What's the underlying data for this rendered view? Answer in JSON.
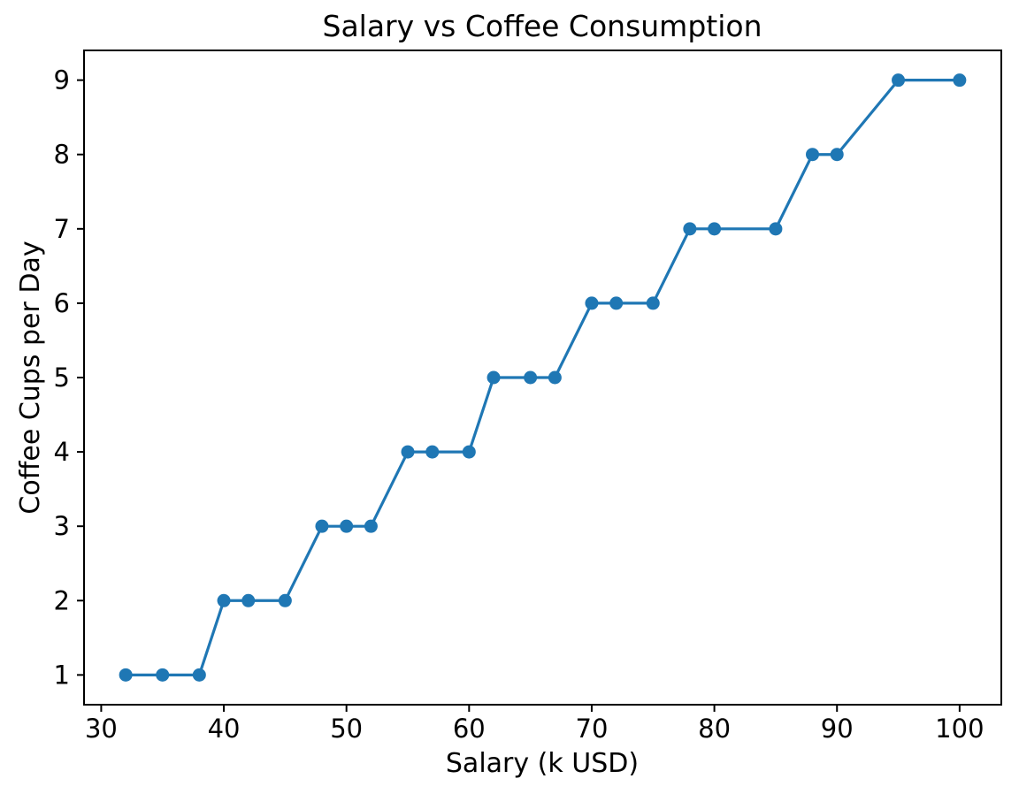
{
  "chart_data": {
    "type": "line",
    "title": "Salary vs Coffee Consumption",
    "xlabel": "Salary (k USD)",
    "ylabel": "Coffee Cups per Day",
    "x": [
      32,
      35,
      38,
      40,
      42,
      45,
      48,
      50,
      52,
      55,
      57,
      60,
      62,
      65,
      67,
      70,
      72,
      75,
      78,
      80,
      85,
      88,
      90,
      95,
      100
    ],
    "y": [
      1,
      1,
      1,
      2,
      2,
      2,
      3,
      3,
      3,
      4,
      4,
      4,
      5,
      5,
      5,
      6,
      6,
      6,
      7,
      7,
      7,
      8,
      8,
      9,
      9
    ],
    "xlim": [
      28.6,
      103.4
    ],
    "ylim": [
      0.6,
      9.4
    ],
    "x_ticks": [
      30,
      40,
      50,
      60,
      70,
      80,
      90,
      100
    ],
    "y_ticks": [
      1,
      2,
      3,
      4,
      5,
      6,
      7,
      8,
      9
    ],
    "grid": false,
    "legend": "none",
    "line_color": "#1f77b4",
    "marker": "circle",
    "spine_color": "#000000",
    "text_color": "#000000",
    "background_color": "#ffffff"
  }
}
